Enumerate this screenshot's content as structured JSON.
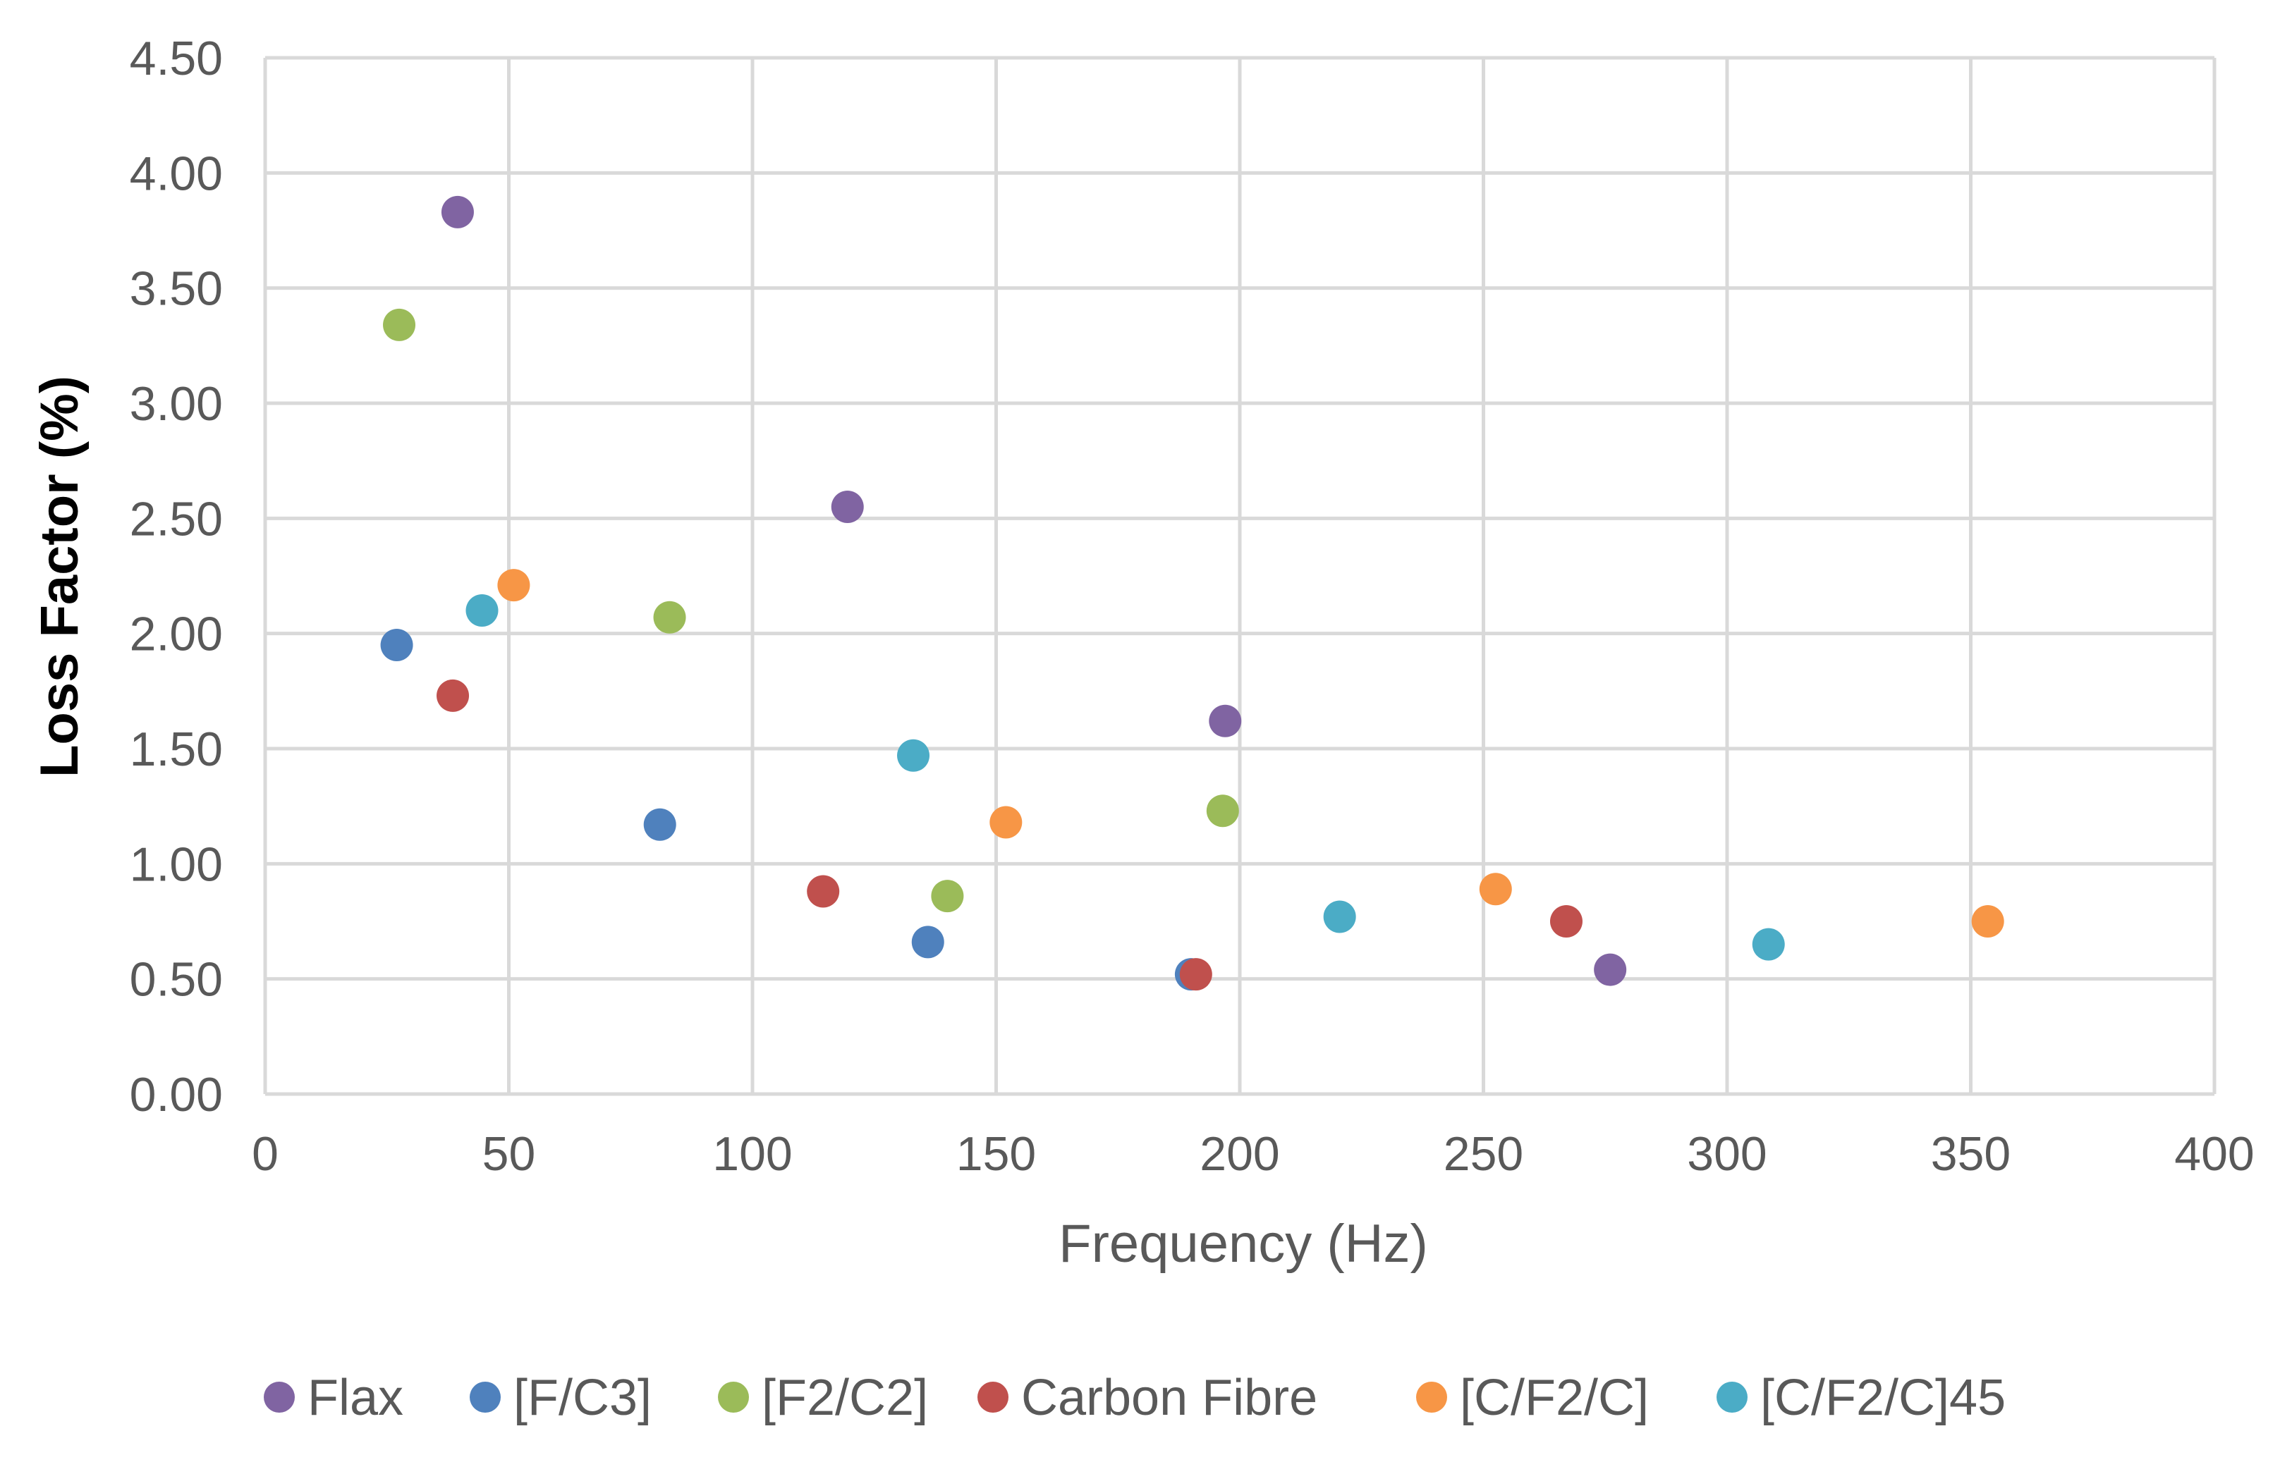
{
  "chart_data": {
    "type": "scatter",
    "title": "",
    "xlabel": "Frequency (Hz)",
    "ylabel": "Loss Factor (%)",
    "xlim": [
      0,
      400
    ],
    "ylim": [
      0,
      4.5
    ],
    "x_ticks": [
      0,
      50,
      100,
      150,
      200,
      250,
      300,
      350,
      400
    ],
    "y_ticks": [
      0,
      0.5,
      1.0,
      1.5,
      2.0,
      2.5,
      3.0,
      3.5,
      4.0,
      4.5
    ],
    "x_tick_labels": [
      "0",
      "50",
      "100",
      "150",
      "200",
      "250",
      "300",
      "350",
      "400"
    ],
    "y_tick_labels": [
      "0.00",
      "0.50",
      "1.00",
      "1.50",
      "2.00",
      "2.50",
      "3.00",
      "3.50",
      "4.00",
      "4.50"
    ],
    "grid": true,
    "legend_position": "bottom",
    "series": [
      {
        "name": "Flax",
        "color": "#8064a2",
        "points": [
          [
            39.5,
            3.83
          ],
          [
            119.5,
            2.55
          ],
          [
            197,
            1.62
          ],
          [
            276,
            0.54
          ]
        ]
      },
      {
        "name": "[F/C3]",
        "color": "#4f81bd",
        "points": [
          [
            27,
            1.95
          ],
          [
            81,
            1.17
          ],
          [
            136,
            0.66
          ],
          [
            190,
            0.52
          ]
        ]
      },
      {
        "name": "[F2/C2]",
        "color": "#9bbb59",
        "points": [
          [
            27.5,
            3.34
          ],
          [
            83,
            2.07
          ],
          [
            140,
            0.86
          ],
          [
            196.5,
            1.23
          ]
        ]
      },
      {
        "name": "Carbon Fibre",
        "color": "#c0504d",
        "points": [
          [
            38.5,
            1.73
          ],
          [
            114.5,
            0.88
          ],
          [
            191,
            0.52
          ],
          [
            267,
            0.75
          ]
        ]
      },
      {
        "name": "[C/F2/C]",
        "color": "#f79646",
        "points": [
          [
            51,
            2.21
          ],
          [
            152,
            1.18
          ],
          [
            252.5,
            0.89
          ],
          [
            353.5,
            0.75
          ]
        ]
      },
      {
        "name": "[C/F2/C]45",
        "color": "#4bacc6",
        "points": [
          [
            44.5,
            2.1
          ],
          [
            133,
            1.47
          ],
          [
            220.5,
            0.77
          ],
          [
            308.5,
            0.65
          ]
        ]
      }
    ]
  }
}
